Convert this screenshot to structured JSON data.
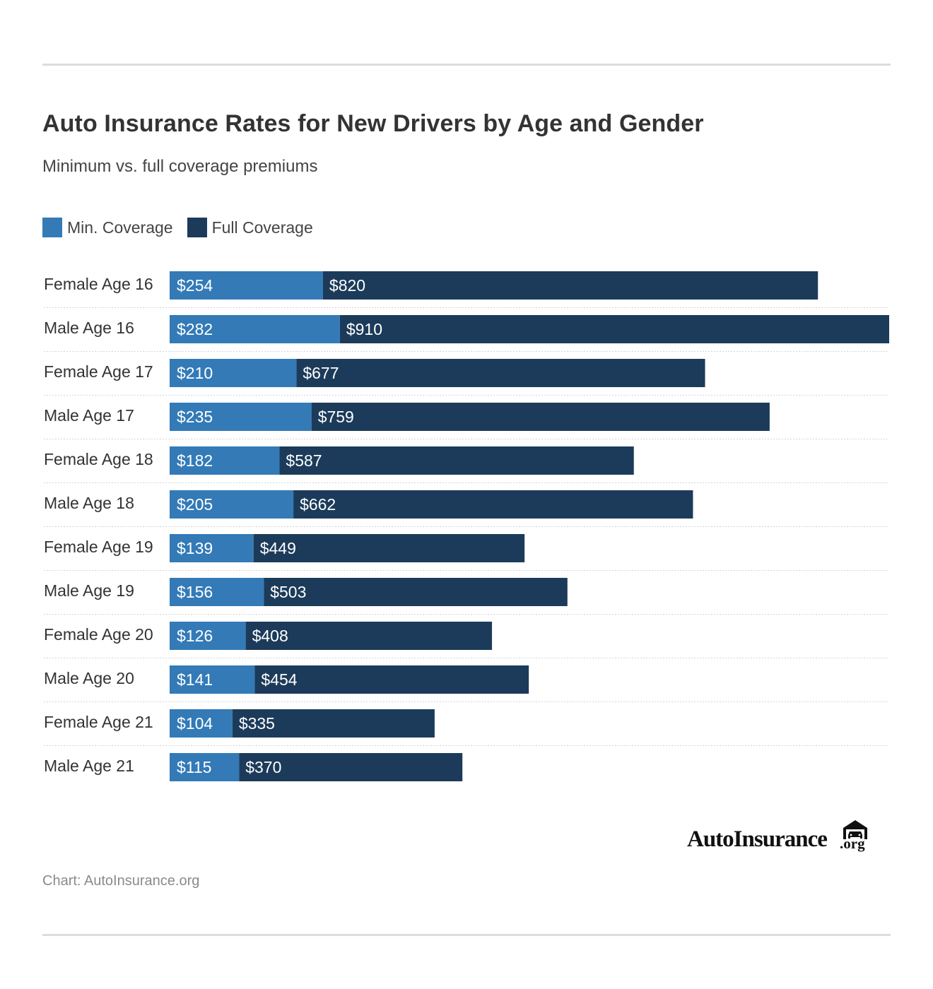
{
  "title": "Auto Insurance Rates for New Drivers by Age and Gender",
  "subtitle": "Minimum vs. full coverage premiums",
  "source": "Chart: AutoInsurance.org",
  "logo": {
    "text": "AutoInsurance",
    "suffix": ".org",
    "icon": "car-in-garage-icon"
  },
  "colors": {
    "min": "#337ab7",
    "full": "#1c3b5a",
    "row_divider": "#d4d4d4",
    "rule": "#dcdcdc"
  },
  "legend": [
    {
      "label": "Min. Coverage",
      "color": "#337ab7"
    },
    {
      "label": "Full Coverage",
      "color": "#1c3b5a"
    }
  ],
  "chart_data": {
    "type": "bar",
    "orientation": "horizontal",
    "stacked": true,
    "title": "Auto Insurance Rates for New Drivers by Age and Gender",
    "subtitle": "Minimum vs. full coverage premiums",
    "legend_position": "top-left",
    "grid": false,
    "categories": [
      "Female Age 16",
      "Male Age 16",
      "Female Age 17",
      "Male Age 17",
      "Female Age 18",
      "Male Age 18",
      "Female Age 19",
      "Male Age 19",
      "Female Age 20",
      "Male Age 20",
      "Female Age 21",
      "Male Age 21"
    ],
    "series": [
      {
        "name": "Min. Coverage",
        "color": "#337ab7",
        "values": [
          254,
          282,
          210,
          235,
          182,
          205,
          139,
          156,
          126,
          141,
          104,
          115
        ],
        "labels": [
          "$254",
          "$282",
          "$210",
          "$235",
          "$182",
          "$205",
          "$139",
          "$156",
          "$126",
          "$141",
          "$104",
          "$115"
        ]
      },
      {
        "name": "Full Coverage",
        "color": "#1c3b5a",
        "values": [
          820,
          910,
          677,
          759,
          587,
          662,
          449,
          503,
          408,
          454,
          335,
          370
        ],
        "labels": [
          "$820",
          "$910",
          "$677",
          "$759",
          "$587",
          "$662",
          "$449",
          "$503",
          "$408",
          "$454",
          "$335",
          "$370"
        ]
      }
    ],
    "xlim": [
      0,
      1192
    ]
  }
}
